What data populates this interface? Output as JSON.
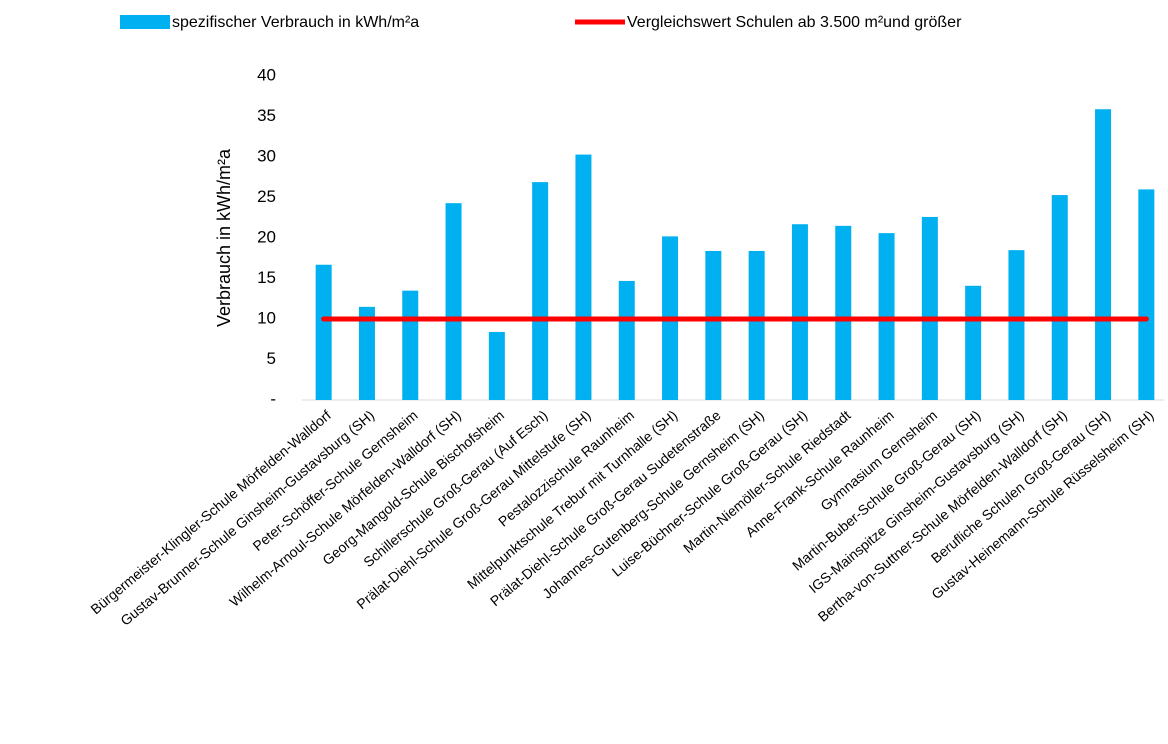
{
  "chart_data": {
    "type": "bar_line",
    "y_axis_label": "Verbrauch in kWh/m²a",
    "categories": [
      "Bürgermeister-Klingler-Schule Mörfelden-Walldorf",
      "Gustav-Brunner-Schule Ginsheim-Gustavsburg (SH)",
      "Peter-Schöffer-Schule Gernsheim",
      "Wilhelm-Arnoul-Schule Mörfelden-Walldorf (SH)",
      "Georg-Mangold-Schule Bischofsheim",
      "Schillerschule Groß-Gerau (Auf Esch)",
      "Prälat-Diehl-Schule Groß-Gerau Mittelstufe (SH)",
      "Pestalozzischule Raunheim",
      "Mittelpunktschule Trebur mit Turnhalle (SH)",
      "Prälat-Diehl-Schule Groß-Gerau Sudetenstraße",
      "Johannes-Gutenberg-Schule Gernsheim (SH)",
      "Luise-Büchner-Schule Groß-Gerau (SH)",
      "Martin-Niemöller-Schule Riedstadt",
      "Anne-Frank-Schule Raunheim",
      "Gymnasium Gernsheim",
      "Martin-Buber-Schule Groß-Gerau (SH)",
      "IGS-Mainspitze Ginsheim-Gustavsburg (SH)",
      "Bertha-von-Suttner-Schule Mörfelden-Walldorf (SH)",
      "Berufliche Schulen Groß-Gerau (SH)",
      "Gustav-Heinemann-Schule Rüsselsheim (SH)"
    ],
    "series": [
      {
        "name": "spezifischer Verbrauch in kWh/m²a",
        "type": "bar",
        "color": "#00b0f0",
        "values": [
          16.7,
          11.5,
          13.5,
          24.3,
          8.4,
          26.9,
          30.3,
          14.7,
          20.2,
          18.4,
          18.4,
          21.7,
          21.5,
          20.6,
          22.6,
          14.1,
          18.5,
          25.3,
          35.9,
          26.0
        ]
      },
      {
        "name": "Vergleichswert Schulen ab 3.500 m²und größer",
        "type": "line",
        "color": "#ff0000",
        "values": [
          10,
          10,
          10,
          10,
          10,
          10,
          10,
          10,
          10,
          10,
          10,
          10,
          10,
          10,
          10,
          10,
          10,
          10,
          10,
          10
        ]
      }
    ],
    "ylim": [
      0,
      40
    ],
    "yticks": [
      {
        "value": 0,
        "label": "-"
      },
      5,
      10,
      15,
      20,
      25,
      30,
      35,
      40
    ],
    "legend": "top"
  }
}
